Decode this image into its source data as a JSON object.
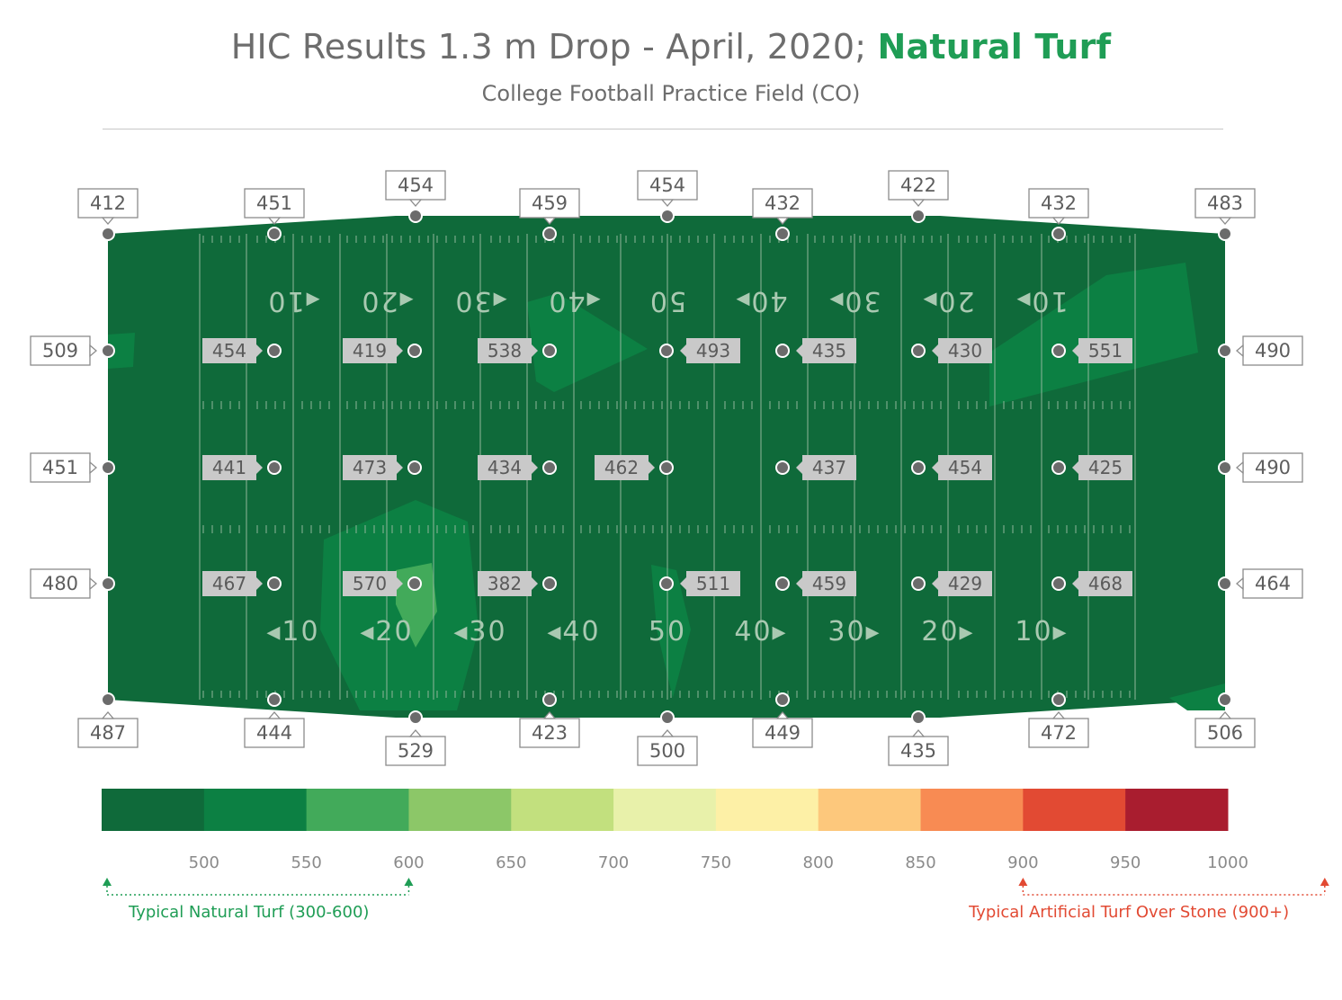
{
  "title": {
    "main": "HIC Results 1.3 m Drop - April, 2020; ",
    "accent": "Natural Turf"
  },
  "subtitle": "College Football Practice Field (CO)",
  "colors": {
    "field_base": "#0f6a3a",
    "accent": "#1f9d55",
    "artificial": "#e24a33",
    "scale": [
      "#0f6a3a",
      "#0c8043",
      "#42aa5a",
      "#8cc768",
      "#c2e07e",
      "#e8f1aa",
      "#fdf0a6",
      "#fdc87c",
      "#f88b53",
      "#e24a33",
      "#a91d2f"
    ]
  },
  "chart_data": {
    "type": "heatmap",
    "metric": "HIC",
    "yard_labels": [
      "10",
      "20",
      "30",
      "40",
      "50",
      "40",
      "30",
      "20",
      "10"
    ],
    "points": {
      "top_perimeter": [
        412,
        451,
        454,
        459,
        454,
        432,
        422,
        432,
        483
      ],
      "left_perimeter": [
        509,
        451,
        480
      ],
      "right_perimeter": [
        490,
        490,
        464
      ],
      "bottom_perimeter": [
        487,
        444,
        529,
        423,
        500,
        449,
        435,
        472,
        506
      ],
      "interior_rows": [
        [
          454,
          419,
          538,
          493,
          435,
          430,
          551
        ],
        [
          441,
          473,
          434,
          462,
          437,
          454,
          425
        ],
        [
          467,
          570,
          382,
          511,
          459,
          429,
          468
        ]
      ]
    },
    "color_scale": {
      "breaks": [
        500,
        550,
        600,
        650,
        700,
        750,
        800,
        850,
        900,
        950,
        1000
      ],
      "tick_labels": [
        "500",
        "550",
        "600",
        "650",
        "700",
        "750",
        "800",
        "850",
        "900",
        "950",
        "1000"
      ]
    },
    "ranges": [
      {
        "label": "Typical Natural Turf (300-600)",
        "from": 450,
        "to": 600
      },
      {
        "label": "Typical Artificial Turf Over Stone (900+)",
        "from": 900,
        "to": 1050
      }
    ]
  }
}
